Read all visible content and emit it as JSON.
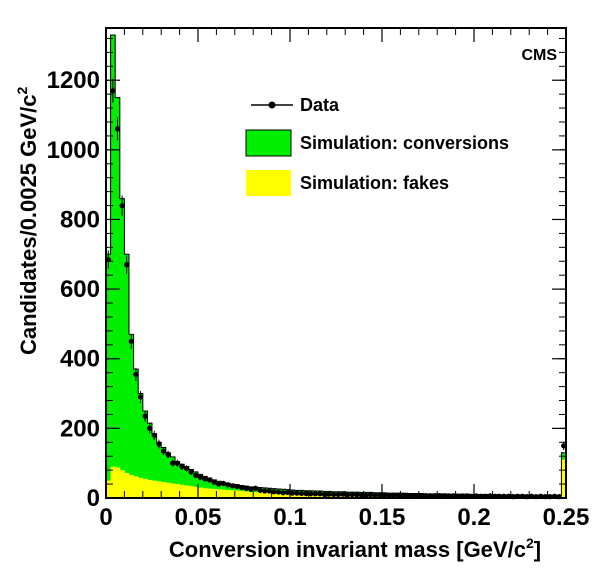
{
  "chart_data": {
    "type": "histogram",
    "experiment_label": "CMS",
    "xlabel_main": "Conversion invariant mass [GeV/c",
    "xlabel_sup": "2",
    "xlabel_end": "]",
    "ylabel_main": "Candidates/0.0025 GeV/c",
    "ylabel_sup": "2",
    "xlim": [
      0,
      0.25
    ],
    "ylim": [
      0,
      1350
    ],
    "bin_width": 0.0025,
    "x_ticks": [
      "0",
      "0.05",
      "0.1",
      "0.15",
      "0.2",
      "0.25"
    ],
    "x_tick_values": [
      0,
      0.05,
      0.1,
      0.15,
      0.2,
      0.25
    ],
    "y_ticks": [
      "0",
      "200",
      "400",
      "600",
      "800",
      "1000",
      "1200"
    ],
    "y_tick_values": [
      0,
      200,
      400,
      600,
      800,
      1000,
      1200
    ],
    "legend": {
      "data": "Data",
      "conversions": "Simulation: conversions",
      "fakes": "Simulation: fakes"
    },
    "colors": {
      "conversions": "#00ee00",
      "fakes": "#ffff00",
      "data": "#000000"
    },
    "bin_centers": [
      0.00125,
      0.00375,
      0.00625,
      0.00875,
      0.01125,
      0.01375,
      0.01625,
      0.01875,
      0.02125,
      0.02375,
      0.02625,
      0.02875,
      0.03125,
      0.03375,
      0.03625,
      0.03875,
      0.04125,
      0.04375,
      0.04625,
      0.04875,
      0.05125,
      0.05375,
      0.05625,
      0.05875,
      0.06125,
      0.06375,
      0.06625,
      0.06875,
      0.07125,
      0.07375,
      0.07625,
      0.07875,
      0.08125,
      0.08375,
      0.08625,
      0.08875,
      0.09125,
      0.09375,
      0.09625,
      0.09875,
      0.10125,
      0.10375,
      0.10625,
      0.10875,
      0.11125,
      0.11375,
      0.11625,
      0.11875,
      0.12125,
      0.12375,
      0.12625,
      0.12875,
      0.13125,
      0.13375,
      0.13625,
      0.13875,
      0.14125,
      0.14375,
      0.14625,
      0.14875,
      0.15125,
      0.15375,
      0.15625,
      0.15875,
      0.16125,
      0.16375,
      0.16625,
      0.16875,
      0.17125,
      0.17375,
      0.17625,
      0.17875,
      0.18125,
      0.18375,
      0.18625,
      0.18875,
      0.19125,
      0.19375,
      0.19625,
      0.19875,
      0.20125,
      0.20375,
      0.20625,
      0.20875,
      0.21125,
      0.21375,
      0.21625,
      0.21875,
      0.22125,
      0.22375,
      0.22625,
      0.22875,
      0.23125,
      0.23375,
      0.23625,
      0.23875,
      0.24125,
      0.24375,
      0.24625,
      0.24875
    ],
    "sim_total": [
      700,
      1330,
      1150,
      860,
      700,
      470,
      370,
      300,
      250,
      215,
      185,
      160,
      145,
      130,
      118,
      105,
      97,
      90,
      82,
      75,
      68,
      62,
      57,
      52,
      48,
      45,
      42,
      40,
      38,
      36,
      34,
      32,
      31,
      30,
      29,
      28,
      27,
      26,
      25,
      24,
      23,
      22,
      22,
      21,
      21,
      20,
      20,
      19,
      19,
      18,
      18,
      18,
      17,
      17,
      17,
      16,
      16,
      16,
      15,
      15,
      15,
      14,
      14,
      14,
      14,
      13,
      13,
      13,
      13,
      12,
      12,
      12,
      12,
      12,
      11,
      11,
      11,
      11,
      11,
      10,
      10,
      10,
      10,
      10,
      10,
      9,
      9,
      9,
      9,
      9,
      9,
      8,
      8,
      8,
      8,
      8,
      8,
      8,
      8,
      130
    ],
    "sim_fakes": [
      50,
      90,
      88,
      80,
      72,
      66,
      62,
      58,
      55,
      52,
      50,
      48,
      46,
      44,
      42,
      40,
      38,
      36,
      34,
      32,
      30,
      28,
      27,
      26,
      25,
      24,
      23,
      22,
      21,
      20,
      19,
      18,
      17,
      17,
      16,
      16,
      15,
      15,
      14,
      14,
      13,
      13,
      13,
      12,
      12,
      12,
      11,
      11,
      11,
      11,
      10,
      10,
      10,
      10,
      10,
      9,
      9,
      9,
      9,
      9,
      9,
      8,
      8,
      8,
      8,
      8,
      8,
      8,
      8,
      7,
      7,
      7,
      7,
      7,
      7,
      7,
      7,
      7,
      6,
      6,
      6,
      6,
      6,
      6,
      6,
      6,
      6,
      6,
      6,
      5,
      5,
      5,
      5,
      5,
      5,
      5,
      5,
      5,
      5,
      110
    ],
    "data_values": [
      685,
      1170,
      1060,
      840,
      670,
      450,
      355,
      290,
      235,
      200,
      180,
      155,
      135,
      125,
      100,
      100,
      90,
      85,
      75,
      65,
      60,
      55,
      52,
      45,
      40,
      42,
      38,
      35,
      33,
      30,
      28,
      25,
      28,
      22,
      20,
      20,
      18,
      17,
      15,
      16,
      14,
      14,
      13,
      13,
      12,
      12,
      12,
      10,
      11,
      10,
      10,
      11,
      9,
      10,
      9,
      9,
      8,
      9,
      8,
      9,
      8,
      7,
      8,
      7,
      7,
      8,
      7,
      7,
      6,
      7,
      6,
      6,
      7,
      6,
      6,
      6,
      5,
      6,
      6,
      5,
      6,
      5,
      5,
      6,
      5,
      5,
      5,
      5,
      4,
      5,
      5,
      4,
      5,
      4,
      5,
      4,
      4,
      5,
      4,
      150
    ]
  }
}
